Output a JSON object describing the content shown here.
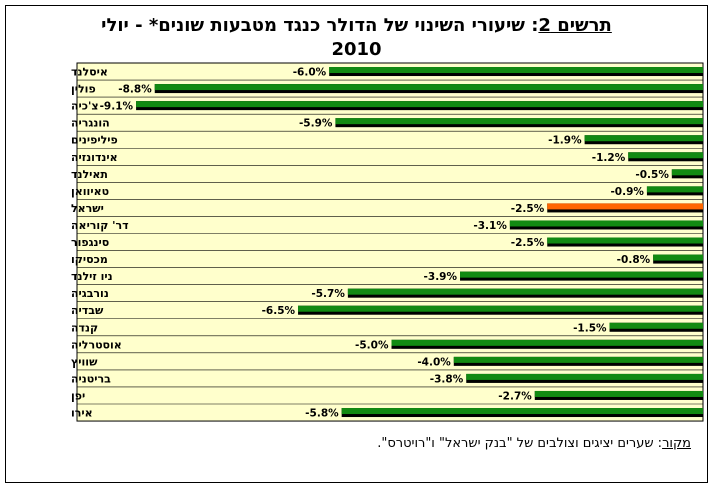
{
  "title": {
    "prefix": "תרשים 2",
    "line1": ": שיעורי השינוי של הדולר כנגד מטבעות שונים* - יולי",
    "line2": "2010"
  },
  "source": {
    "label": "מקור",
    "text": ": שערים יציגים וצולבים של \"בנק ישראל\" ו\"רויטרס\"."
  },
  "colors": {
    "plot_background": "#ffffcc",
    "bar_default": "#128a12",
    "bar_highlight": "#ff6600",
    "bar_shadow": "#000000"
  },
  "chart_data": {
    "type": "bar",
    "orientation": "horizontal",
    "categories": [
      "איסלנד",
      "פולין",
      "צ'כיה",
      "הונגריה",
      "פיליפינים",
      "אינדונזיה",
      "תאילנד",
      "טאיוואן",
      "ישראל",
      "דר' קוריאה",
      "סינגפור",
      "מכסיקו",
      "ניו זילנד",
      "נורבגיה",
      "שבדיה",
      "קנדה",
      "אוסטרליה",
      "שוויץ",
      "בריטניה",
      "יפן",
      "אירו"
    ],
    "values": [
      -6.0,
      -8.8,
      -9.1,
      -5.9,
      -1.9,
      -1.2,
      -0.5,
      -0.9,
      -2.5,
      -3.1,
      -2.5,
      -0.8,
      -3.9,
      -5.7,
      -6.5,
      -1.5,
      -5.0,
      -4.0,
      -3.8,
      -2.7,
      -5.8
    ],
    "value_labels": [
      "-6.0%",
      "-8.8%",
      "-9.1%",
      "-5.9%",
      "-1.9%",
      "-1.2%",
      "-0.5%",
      "-0.9%",
      "-2.5%",
      "-3.1%",
      "-2.5%",
      "-0.8%",
      "-3.9%",
      "-5.7%",
      "-6.5%",
      "-1.5%",
      "-5.0%",
      "-4.0%",
      "-3.8%",
      "-2.7%",
      "-5.8%"
    ],
    "highlight": "ישראל",
    "xlim": [
      -10,
      0
    ],
    "grid": "horizontal lines between categories",
    "legend": "none"
  }
}
